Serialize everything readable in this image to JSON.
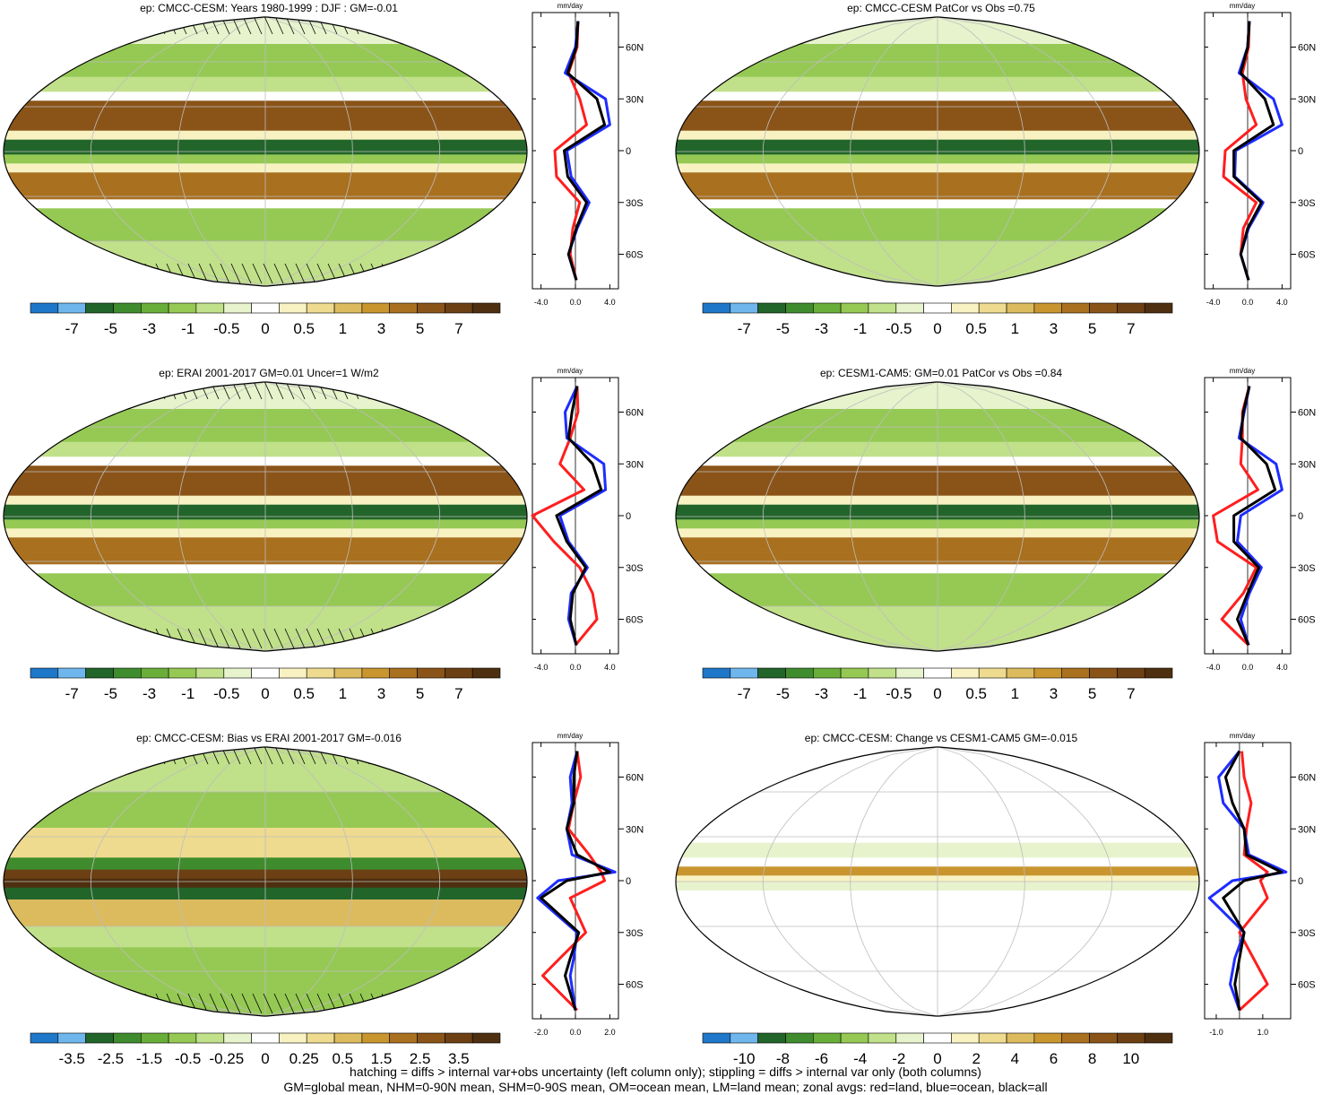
{
  "colors": {
    "palette": [
      "#1f77c9",
      "#6fb6ec",
      "#22652a",
      "#3f8c2e",
      "#6aae3a",
      "#95c954",
      "#c1e08a",
      "#e6f3cc",
      "#ffffff",
      "#f8f2c2",
      "#eedb90",
      "#dcbb5e",
      "#c9952f",
      "#a9701f",
      "#8a5418",
      "#6c4013",
      "#4e2f0f"
    ],
    "land_line": "#ff1e1e",
    "ocean_line": "#1e2cff",
    "all_line": "#000000"
  },
  "zonal_unit": "mm/day",
  "lat_labels": [
    "60N",
    "30N",
    "0",
    "30S",
    "60S"
  ],
  "panels": [
    {
      "title": "ep: CMCC-CESM: Years 1980-1999 : DJF : GM=-0.01",
      "field": "mean",
      "hatching": true,
      "colorbar_labels": [
        "-7",
        "-5",
        "-3",
        "-1",
        "-0.5",
        "0",
        "0.5",
        "1",
        "3",
        "5",
        "7"
      ],
      "zonal_xticks": [
        "-4.0",
        "0.0",
        "4.0"
      ]
    },
    {
      "title": "ep: CMCC-CESM PatCor vs Obs =0.75",
      "field": "mean",
      "hatching": false,
      "colorbar_labels": [
        "-7",
        "-5",
        "-3",
        "-1",
        "-0.5",
        "0",
        "0.5",
        "1",
        "3",
        "5",
        "7"
      ],
      "zonal_xticks": [
        "-4.0",
        "0.0",
        "4.0"
      ]
    },
    {
      "title": "ep: ERAI 2001-2017 GM=0.01 Uncer=1 W/m2",
      "field": "mean",
      "hatching": true,
      "colorbar_labels": [
        "-7",
        "-5",
        "-3",
        "-1",
        "-0.5",
        "0",
        "0.5",
        "1",
        "3",
        "5",
        "7"
      ],
      "zonal_xticks": [
        "-4.0",
        "0.0",
        "4.0"
      ]
    },
    {
      "title": "ep: CESM1-CAM5: GM=0.01 PatCor vs Obs =0.84",
      "field": "mean",
      "hatching": false,
      "colorbar_labels": [
        "-7",
        "-5",
        "-3",
        "-1",
        "-0.5",
        "0",
        "0.5",
        "1",
        "3",
        "5",
        "7"
      ],
      "zonal_xticks": [
        "-4.0",
        "0.0",
        "4.0"
      ]
    },
    {
      "title": "ep: CMCC-CESM: Bias vs ERAI 2001-2017 GM=-0.016",
      "field": "bias",
      "hatching": true,
      "colorbar_labels": [
        "-3.5",
        "-2.5",
        "-1.5",
        "-0.5",
        "-0.25",
        "0",
        "0.25",
        "0.5",
        "1.5",
        "2.5",
        "3.5"
      ],
      "zonal_xticks": [
        "-2.0",
        "0.0",
        "2.0"
      ]
    },
    {
      "title": "ep: CMCC-CESM: Change vs CESM1-CAM5 GM=-0.015",
      "field": "change",
      "hatching": false,
      "colorbar_labels": [
        "-10",
        "-8",
        "-6",
        "-4",
        "-2",
        "0",
        "2",
        "4",
        "6",
        "8",
        "10"
      ],
      "zonal_xticks": [
        "-1.0",
        "1.0"
      ]
    }
  ],
  "footer": {
    "line1": "hatching = diffs > internal var+obs uncertainty (left column only); stippling = diffs > internal var only (both columns)",
    "line2": "GM=global mean, NHM=0-90N mean, SHM=0-90S mean, OM=ocean mean, LM=land mean; zonal avgs: red=land, blue=ocean, black=all"
  },
  "chart_data": [
    {
      "type": "line",
      "title": "ep: CMCC-CESM: Years 1980-1999 : DJF : GM=-0.01",
      "xlabel": "mm/day",
      "ylim": [
        -80,
        80
      ],
      "xlim": [
        -5,
        5
      ],
      "y": [
        75,
        60,
        45,
        30,
        15,
        0,
        -15,
        -30,
        -45,
        -60,
        -75
      ],
      "series": [
        {
          "name": "land",
          "values": [
            0.3,
            0.2,
            -0.8,
            0.5,
            1.3,
            -2.4,
            -2.2,
            0.5,
            -0.3,
            -0.6,
            0.1
          ]
        },
        {
          "name": "ocean",
          "values": [
            0.3,
            0.0,
            -1.2,
            3.5,
            4.0,
            -1.0,
            -0.5,
            1.6,
            0.2,
            -0.8,
            0.1
          ]
        },
        {
          "name": "all",
          "values": [
            0.3,
            0.1,
            -0.9,
            2.5,
            3.4,
            -1.3,
            -0.9,
            1.3,
            0.1,
            -0.8,
            0.1
          ]
        }
      ]
    },
    {
      "type": "line",
      "title": "ep: CMCC-CESM PatCor vs Obs =0.75",
      "xlabel": "mm/day",
      "ylim": [
        -80,
        80
      ],
      "xlim": [
        -5,
        5
      ],
      "y": [
        75,
        60,
        45,
        30,
        15,
        0,
        -15,
        -30,
        -45,
        -60,
        -75
      ],
      "series": [
        {
          "name": "land",
          "values": [
            0.2,
            0.1,
            -0.6,
            -0.2,
            1.0,
            -2.6,
            -2.8,
            1.0,
            -0.5,
            -0.8,
            0.1
          ]
        },
        {
          "name": "ocean",
          "values": [
            0.2,
            0.0,
            -1.0,
            3.0,
            4.0,
            -1.4,
            -1.5,
            1.8,
            0.1,
            -0.8,
            0.1
          ]
        },
        {
          "name": "all",
          "values": [
            0.2,
            0.0,
            -0.8,
            2.0,
            3.0,
            -1.6,
            -1.6,
            1.6,
            0.0,
            -0.8,
            0.1
          ]
        }
      ]
    },
    {
      "type": "line",
      "title": "ep: ERAI 2001-2017 GM=0.01 Uncer=1 W/m2",
      "xlabel": "mm/day",
      "ylim": [
        -80,
        80
      ],
      "xlim": [
        -5,
        5
      ],
      "y": [
        75,
        60,
        45,
        30,
        15,
        0,
        -15,
        -30,
        -45,
        -60,
        -75
      ],
      "series": [
        {
          "name": "land",
          "values": [
            0.2,
            0.3,
            -0.6,
            -1.8,
            1.0,
            -5.0,
            -2.5,
            0.5,
            2.0,
            2.5,
            0.0
          ]
        },
        {
          "name": "ocean",
          "values": [
            0.2,
            -1.2,
            -1.0,
            3.3,
            3.5,
            -1.8,
            -0.8,
            1.4,
            -0.5,
            -0.8,
            0.1
          ]
        },
        {
          "name": "all",
          "values": [
            0.2,
            -0.4,
            -0.8,
            2.0,
            3.0,
            -2.2,
            -1.0,
            1.2,
            -0.3,
            -0.6,
            0.1
          ]
        }
      ]
    },
    {
      "type": "line",
      "title": "ep: CESM1-CAM5: GM=0.01 PatCor vs Obs =0.84",
      "xlabel": "mm/day",
      "ylim": [
        -80,
        80
      ],
      "xlim": [
        -5,
        5
      ],
      "y": [
        75,
        60,
        45,
        30,
        15,
        0,
        -15,
        -30,
        -45,
        -60,
        -75
      ],
      "series": [
        {
          "name": "land",
          "values": [
            0.2,
            -0.6,
            -0.6,
            -0.8,
            1.2,
            -4.0,
            -3.5,
            1.0,
            -0.5,
            -3.0,
            0.1
          ]
        },
        {
          "name": "ocean",
          "values": [
            0.2,
            -0.4,
            -1.0,
            3.3,
            4.0,
            -0.8,
            -1.2,
            1.6,
            0.2,
            -0.8,
            0.1
          ]
        },
        {
          "name": "all",
          "values": [
            0.2,
            -0.5,
            -0.8,
            2.2,
            3.2,
            -1.6,
            -1.6,
            1.3,
            0.0,
            -1.2,
            0.1
          ]
        }
      ]
    },
    {
      "type": "line",
      "title": "ep: CMCC-CESM: Bias vs ERAI 2001-2017 GM=-0.016",
      "xlabel": "mm/day",
      "ylim": [
        -80,
        80
      ],
      "xlim": [
        -2.5,
        2.5
      ],
      "y": [
        75,
        60,
        45,
        30,
        15,
        5,
        0,
        -10,
        -30,
        -45,
        -55,
        -75
      ],
      "series": [
        {
          "name": "land",
          "values": [
            0.1,
            0.3,
            -0.1,
            -0.4,
            0.8,
            1.5,
            1.7,
            -0.3,
            0.6,
            -0.9,
            -1.9,
            0.1
          ]
        },
        {
          "name": "ocean",
          "values": [
            0.1,
            -0.3,
            -0.2,
            -0.5,
            -0.2,
            2.3,
            -1.0,
            -2.2,
            0.1,
            -0.1,
            -0.3,
            0.0
          ]
        },
        {
          "name": "all",
          "values": [
            0.1,
            -0.1,
            -0.1,
            -0.5,
            0.1,
            2.0,
            -0.5,
            -2.0,
            0.2,
            -0.3,
            -0.6,
            0.0
          ]
        }
      ]
    },
    {
      "type": "line",
      "title": "ep: CMCC-CESM: Change vs CESM1-CAM5 GM=-0.015",
      "xlabel": "mm/day",
      "ylim": [
        -80,
        80
      ],
      "xlim": [
        -1.5,
        2.2
      ],
      "y": [
        75,
        60,
        45,
        30,
        15,
        5,
        0,
        -10,
        -30,
        -45,
        -60,
        -75
      ],
      "series": [
        {
          "name": "land",
          "values": [
            0.1,
            0.2,
            0.5,
            0.3,
            0.2,
            1.2,
            0.9,
            1.2,
            0.0,
            0.6,
            1.2,
            0.0
          ]
        },
        {
          "name": "ocean",
          "values": [
            0.0,
            -0.9,
            -0.7,
            0.2,
            0.4,
            2.0,
            -0.3,
            -1.3,
            0.2,
            -0.2,
            -0.4,
            0.0
          ]
        },
        {
          "name": "all",
          "values": [
            0.0,
            -0.6,
            -0.3,
            0.2,
            0.3,
            1.8,
            0.2,
            -0.7,
            0.2,
            0.0,
            -0.2,
            0.0
          ]
        }
      ]
    }
  ]
}
